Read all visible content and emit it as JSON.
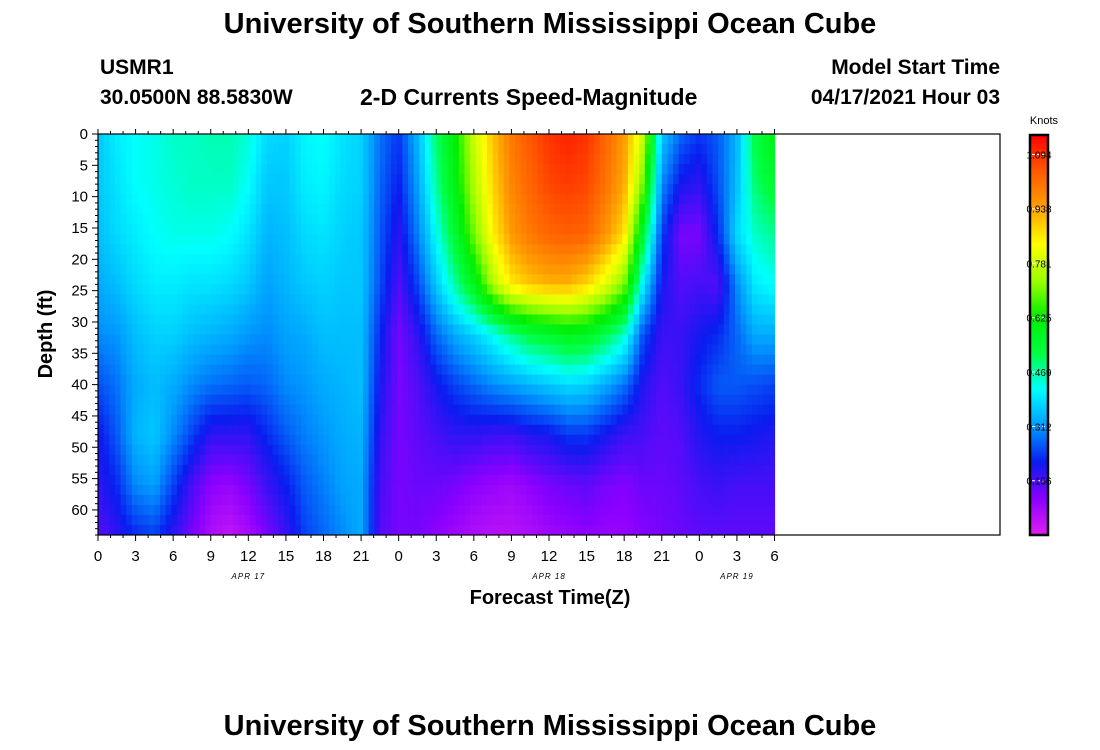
{
  "page": {
    "top_title": "University of Southern Mississippi Ocean Cube",
    "bottom_title": "University of Southern Mississippi Ocean Cube",
    "station_id": "USMR1",
    "station_coords": "30.0500N  88.5830W",
    "chart_title": "2-D Currents Speed-Magnitude",
    "model_start_label": "Model Start Time",
    "model_start_value": "04/17/2021 Hour 03"
  },
  "colors": {
    "scale": [
      "#e020f0",
      "#8a00ff",
      "#0a1cf0",
      "#009cff",
      "#00ffff",
      "#00ff40",
      "#00ee00",
      "#9cff00",
      "#ffff00",
      "#ffa000",
      "#ff5a00",
      "#ff0000"
    ]
  },
  "chart_data": {
    "type": "heatmap",
    "title": "2-D Currents Speed-Magnitude",
    "xlabel": "Forecast Time(Z)",
    "ylabel": "Depth (ft)",
    "x_hours": [
      0,
      72
    ],
    "x_tick_hours": [
      0,
      3,
      6,
      9,
      12,
      15,
      18,
      21,
      24,
      27,
      30,
      33,
      36,
      39,
      42,
      45,
      48,
      51,
      54
    ],
    "x_tick_labels": [
      "0",
      "3",
      "6",
      "9",
      "12",
      "15",
      "18",
      "21",
      "0",
      "3",
      "6",
      "9",
      "12",
      "15",
      "18",
      "21",
      "0",
      "3",
      "6"
    ],
    "date_labels": [
      {
        "hour": 12,
        "text": "APR 17"
      },
      {
        "hour": 36,
        "text": "APR 18"
      },
      {
        "hour": 51,
        "text": "APR 19"
      }
    ],
    "y_range": [
      0,
      64
    ],
    "y_tick_values": [
      0,
      5,
      10,
      15,
      20,
      25,
      30,
      35,
      40,
      45,
      50,
      55,
      60
    ],
    "y_tick_labels": [
      "0",
      "5",
      "10",
      "15",
      "20",
      "25",
      "30",
      "35",
      "40",
      "45",
      "50",
      "55",
      "60"
    ],
    "colorbar": {
      "label": "Knots",
      "min": 0.0,
      "max": 1.15,
      "tick_values": [
        0.156,
        0.312,
        0.469,
        0.625,
        0.781,
        0.938,
        1.094
      ],
      "tick_labels": [
        "0.156",
        "0.312",
        "0.469",
        "0.625",
        "0.781",
        "0.938",
        "1.094"
      ]
    },
    "time_hours": [
      0,
      1.5,
      3,
      4.5,
      6,
      7.5,
      9,
      10.5,
      12,
      13.5,
      15,
      16.5,
      18,
      19.5,
      21,
      22.5,
      24,
      25.5,
      27,
      28.5,
      30,
      31.5,
      33,
      34.5,
      36,
      37.5,
      39,
      40.5,
      42,
      43.5,
      45,
      46.5,
      48,
      49.5,
      51,
      52.5,
      54
    ],
    "depths_ft": [
      0,
      8,
      16,
      24,
      32,
      40,
      48,
      56,
      64
    ],
    "values_knots": [
      [
        0.36,
        0.36,
        0.35,
        0.33,
        0.3,
        0.25,
        0.2,
        0.18,
        0.15
      ],
      [
        0.4,
        0.39,
        0.38,
        0.35,
        0.31,
        0.28,
        0.26,
        0.22,
        0.18
      ],
      [
        0.42,
        0.42,
        0.4,
        0.38,
        0.35,
        0.33,
        0.34,
        0.3,
        0.22
      ],
      [
        0.43,
        0.43,
        0.42,
        0.4,
        0.37,
        0.35,
        0.36,
        0.32,
        0.24
      ],
      [
        0.45,
        0.44,
        0.43,
        0.4,
        0.37,
        0.33,
        0.3,
        0.24,
        0.18
      ],
      [
        0.45,
        0.45,
        0.43,
        0.39,
        0.35,
        0.3,
        0.24,
        0.16,
        0.12
      ],
      [
        0.46,
        0.45,
        0.43,
        0.39,
        0.34,
        0.28,
        0.18,
        0.1,
        0.06
      ],
      [
        0.46,
        0.45,
        0.42,
        0.38,
        0.33,
        0.27,
        0.18,
        0.09,
        0.04
      ],
      [
        0.44,
        0.42,
        0.39,
        0.36,
        0.31,
        0.26,
        0.18,
        0.12,
        0.07
      ],
      [
        0.38,
        0.36,
        0.34,
        0.32,
        0.3,
        0.27,
        0.22,
        0.17,
        0.12
      ],
      [
        0.37,
        0.36,
        0.35,
        0.34,
        0.32,
        0.3,
        0.26,
        0.21,
        0.17
      ],
      [
        0.41,
        0.4,
        0.38,
        0.36,
        0.33,
        0.31,
        0.29,
        0.26,
        0.24
      ],
      [
        0.42,
        0.41,
        0.39,
        0.37,
        0.35,
        0.33,
        0.31,
        0.29,
        0.27
      ],
      [
        0.39,
        0.38,
        0.37,
        0.36,
        0.35,
        0.34,
        0.33,
        0.32,
        0.3
      ],
      [
        0.37,
        0.37,
        0.36,
        0.36,
        0.35,
        0.35,
        0.34,
        0.33,
        0.33
      ],
      [
        0.28,
        0.27,
        0.26,
        0.25,
        0.22,
        0.2,
        0.18,
        0.16,
        0.15
      ],
      [
        0.23,
        0.21,
        0.18,
        0.15,
        0.12,
        0.12,
        0.12,
        0.12,
        0.12
      ],
      [
        0.34,
        0.32,
        0.29,
        0.24,
        0.18,
        0.15,
        0.14,
        0.13,
        0.12
      ],
      [
        0.5,
        0.47,
        0.42,
        0.36,
        0.27,
        0.2,
        0.16,
        0.13,
        0.1
      ],
      [
        0.62,
        0.6,
        0.55,
        0.47,
        0.33,
        0.24,
        0.18,
        0.12,
        0.08
      ],
      [
        0.78,
        0.75,
        0.7,
        0.58,
        0.37,
        0.27,
        0.18,
        0.1,
        0.06
      ],
      [
        0.9,
        0.88,
        0.85,
        0.75,
        0.42,
        0.3,
        0.17,
        0.09,
        0.05
      ],
      [
        1.0,
        0.98,
        0.95,
        0.86,
        0.48,
        0.32,
        0.17,
        0.08,
        0.05
      ],
      [
        1.05,
        1.03,
        1.0,
        0.9,
        0.53,
        0.34,
        0.19,
        0.1,
        0.06
      ],
      [
        1.09,
        1.07,
        1.03,
        0.92,
        0.55,
        0.36,
        0.2,
        0.12,
        0.08
      ],
      [
        1.11,
        1.08,
        1.04,
        0.92,
        0.58,
        0.38,
        0.23,
        0.13,
        0.09
      ],
      [
        1.09,
        1.07,
        1.03,
        0.88,
        0.57,
        0.37,
        0.23,
        0.14,
        0.1
      ],
      [
        1.03,
        1.01,
        0.96,
        0.81,
        0.52,
        0.33,
        0.2,
        0.12,
        0.09
      ],
      [
        0.95,
        0.93,
        0.87,
        0.71,
        0.45,
        0.28,
        0.17,
        0.11,
        0.09
      ],
      [
        0.78,
        0.7,
        0.55,
        0.4,
        0.25,
        0.19,
        0.16,
        0.13,
        0.11
      ],
      [
        0.36,
        0.3,
        0.24,
        0.2,
        0.17,
        0.15,
        0.14,
        0.13,
        0.12
      ],
      [
        0.27,
        0.2,
        0.12,
        0.15,
        0.17,
        0.17,
        0.15,
        0.14,
        0.13
      ],
      [
        0.23,
        0.18,
        0.12,
        0.16,
        0.2,
        0.22,
        0.19,
        0.16,
        0.14
      ],
      [
        0.26,
        0.25,
        0.22,
        0.15,
        0.22,
        0.26,
        0.21,
        0.17,
        0.14
      ],
      [
        0.34,
        0.35,
        0.38,
        0.3,
        0.27,
        0.26,
        0.21,
        0.16,
        0.14
      ],
      [
        0.53,
        0.5,
        0.45,
        0.4,
        0.33,
        0.25,
        0.2,
        0.16,
        0.14
      ],
      [
        0.6,
        0.55,
        0.48,
        0.42,
        0.33,
        0.24,
        0.19,
        0.16,
        0.14
      ]
    ]
  }
}
